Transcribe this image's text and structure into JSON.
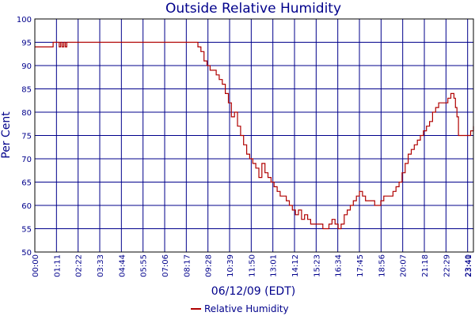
{
  "chart_data": {
    "type": "line",
    "title": "Outside Relative Humidity",
    "xlabel": "06/12/09 (EDT)",
    "ylabel": "Per Cent",
    "x_unit": "time (EDT)",
    "xlim": [
      "00:00",
      "23:59"
    ],
    "ylim": [
      50,
      100
    ],
    "grid": true,
    "legend_position": "bottom-center",
    "x_ticks": [
      "00:00",
      "01:11",
      "02:22",
      "03:33",
      "04:44",
      "05:55",
      "07:06",
      "08:17",
      "09:28",
      "10:39",
      "11:50",
      "13:01",
      "14:12",
      "15:23",
      "16:34",
      "17:45",
      "18:56",
      "20:07",
      "21:18",
      "22:29",
      "23:40",
      "23:41"
    ],
    "y_ticks": [
      50,
      55,
      60,
      65,
      70,
      75,
      80,
      85,
      90,
      95,
      100
    ],
    "series": [
      {
        "name": "Relative Humidity",
        "color": "#b00000",
        "x": [
          "00:00",
          "00:50",
          "01:00",
          "01:11",
          "01:20",
          "01:25",
          "01:30",
          "01:35",
          "01:40",
          "01:45",
          "02:00",
          "03:00",
          "04:00",
          "05:00",
          "06:00",
          "07:00",
          "08:00",
          "08:30",
          "08:45",
          "08:55",
          "09:05",
          "09:15",
          "09:25",
          "09:35",
          "09:45",
          "09:55",
          "10:05",
          "10:15",
          "10:25",
          "10:35",
          "10:45",
          "10:55",
          "11:05",
          "11:15",
          "11:25",
          "11:35",
          "11:45",
          "11:55",
          "12:05",
          "12:15",
          "12:25",
          "12:35",
          "12:45",
          "12:55",
          "13:05",
          "13:15",
          "13:25",
          "13:35",
          "13:45",
          "13:55",
          "14:05",
          "14:15",
          "14:25",
          "14:35",
          "14:45",
          "14:55",
          "15:05",
          "15:15",
          "15:25",
          "15:35",
          "15:45",
          "15:55",
          "16:05",
          "16:15",
          "16:25",
          "16:35",
          "16:45",
          "16:55",
          "17:05",
          "17:15",
          "17:25",
          "17:35",
          "17:45",
          "17:55",
          "18:05",
          "18:15",
          "18:25",
          "18:35",
          "18:45",
          "18:55",
          "19:05",
          "19:15",
          "19:25",
          "19:35",
          "19:45",
          "19:55",
          "20:05",
          "20:15",
          "20:25",
          "20:35",
          "20:45",
          "20:55",
          "21:05",
          "21:15",
          "21:25",
          "21:35",
          "21:45",
          "21:55",
          "22:05",
          "22:15",
          "22:25",
          "22:35",
          "22:45",
          "22:55",
          "23:00",
          "23:05",
          "23:10",
          "23:20",
          "23:30",
          "23:40",
          "23:50",
          "23:59"
        ],
        "y": [
          94,
          94,
          95,
          95,
          94,
          95,
          94,
          95,
          94,
          95,
          95,
          95,
          95,
          95,
          95,
          95,
          95,
          95,
          95,
          94,
          93,
          91,
          90,
          89,
          89,
          88,
          87,
          86,
          84,
          82,
          79,
          80,
          77,
          75,
          73,
          71,
          70,
          69,
          68,
          66,
          69,
          67,
          66,
          65,
          64,
          63,
          62,
          62,
          61,
          60,
          59,
          58,
          59,
          57,
          58,
          57,
          56,
          56,
          56,
          56,
          55,
          55,
          56,
          57,
          56,
          55,
          56,
          58,
          59,
          60,
          61,
          62,
          63,
          62,
          61,
          61,
          61,
          60,
          60,
          61,
          62,
          62,
          62,
          63,
          64,
          65,
          67,
          69,
          71,
          72,
          73,
          74,
          75,
          76,
          77,
          78,
          80,
          81,
          82,
          82,
          82,
          83,
          84,
          83,
          81,
          79,
          75,
          75,
          75,
          75,
          76,
          77
        ]
      }
    ]
  }
}
